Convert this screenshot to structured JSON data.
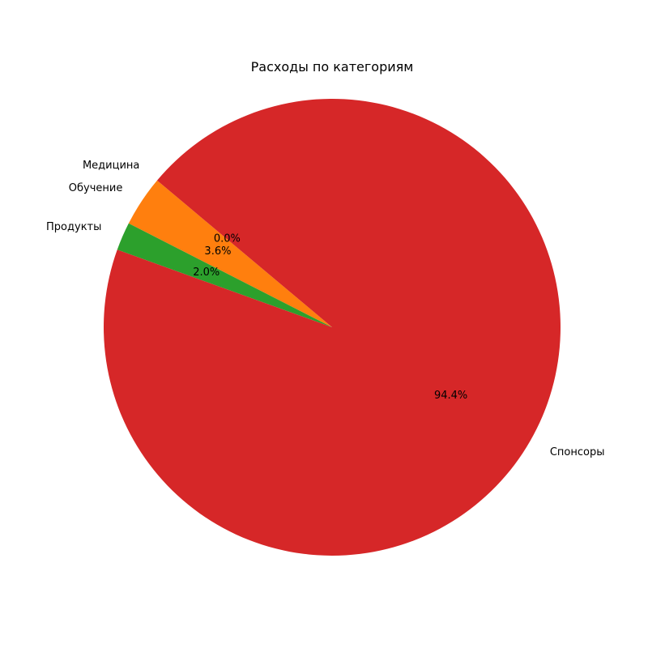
{
  "chart_data": {
    "type": "pie",
    "title": "Расходы по категориям",
    "categories": [
      "Медицина",
      "Обучение",
      "Продукты",
      "Спонсоры"
    ],
    "values": [
      0.0,
      3.6,
      2.0,
      94.4
    ],
    "percent_labels": [
      "0.0%",
      "3.6%",
      "2.0%",
      "94.4%"
    ],
    "colors": [
      "#1f77b4",
      "#ff7f0e",
      "#2ca02c",
      "#d62728"
    ],
    "start_angle_deg": 140,
    "direction": "counterclockwise",
    "legend": "none"
  }
}
